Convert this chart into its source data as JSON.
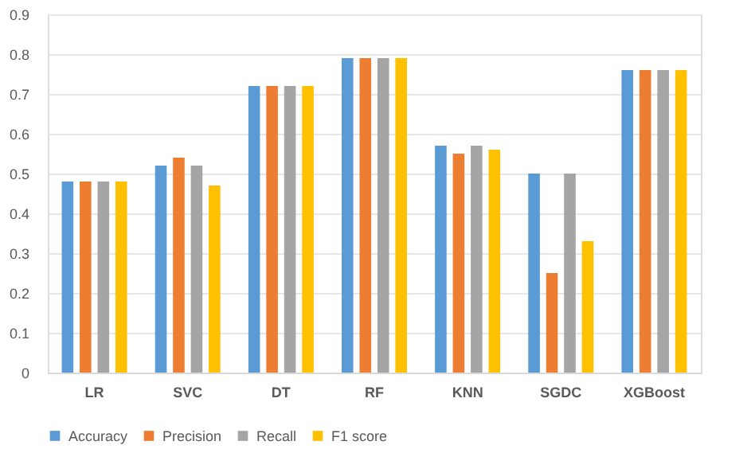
{
  "chart_data": {
    "type": "bar",
    "categories": [
      "LR",
      "SVC",
      "DT",
      "RF",
      "KNN",
      "SGDC",
      "XGBoost"
    ],
    "series": [
      {
        "name": "Accuracy",
        "color": "#5b9bd5",
        "values": [
          0.48,
          0.52,
          0.72,
          0.79,
          0.57,
          0.5,
          0.76
        ]
      },
      {
        "name": "Precision",
        "color": "#ed7d31",
        "values": [
          0.48,
          0.54,
          0.72,
          0.79,
          0.55,
          0.25,
          0.76
        ]
      },
      {
        "name": "Recall",
        "color": "#a5a5a5",
        "values": [
          0.48,
          0.52,
          0.72,
          0.79,
          0.57,
          0.5,
          0.76
        ]
      },
      {
        "name": "F1 score",
        "color": "#ffc000",
        "values": [
          0.48,
          0.47,
          0.72,
          0.79,
          0.56,
          0.33,
          0.76
        ]
      }
    ],
    "ylim": [
      0,
      0.9
    ],
    "yticks": [
      0,
      0.1,
      0.2,
      0.3,
      0.4,
      0.5,
      0.6,
      0.7,
      0.8,
      0.9
    ],
    "grid": "y",
    "legend": "bottom"
  }
}
